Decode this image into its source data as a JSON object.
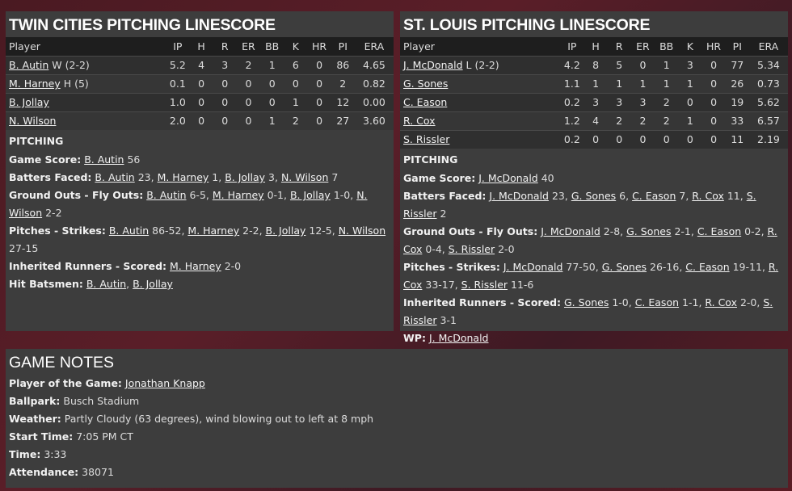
{
  "teams": [
    {
      "title": "TWIN CITIES PITCHING LINESCORE",
      "columns": [
        "Player",
        "IP",
        "H",
        "R",
        "ER",
        "BB",
        "K",
        "HR",
        "PI",
        "ERA"
      ],
      "rows": [
        {
          "name": "B. Autin",
          "note": "W (2-2)",
          "stats": [
            "5.2",
            "4",
            "3",
            "2",
            "1",
            "6",
            "0",
            "86",
            "4.65"
          ]
        },
        {
          "name": "M. Harney",
          "note": "H (5)",
          "stats": [
            "0.1",
            "0",
            "0",
            "0",
            "0",
            "0",
            "0",
            "2",
            "0.82"
          ]
        },
        {
          "name": "B. Jollay",
          "note": "",
          "stats": [
            "1.0",
            "0",
            "0",
            "0",
            "0",
            "1",
            "0",
            "12",
            "0.00"
          ]
        },
        {
          "name": "N. Wilson",
          "note": "",
          "stats": [
            "2.0",
            "0",
            "0",
            "0",
            "1",
            "2",
            "0",
            "27",
            "3.60"
          ]
        }
      ],
      "section": "PITCHING",
      "details": [
        {
          "label": "Game Score:",
          "entries": [
            {
              "name": "B. Autin",
              "value": "56"
            }
          ]
        },
        {
          "label": "Batters Faced:",
          "entries": [
            {
              "name": "B. Autin",
              "value": "23"
            },
            {
              "name": "M. Harney",
              "value": "1"
            },
            {
              "name": "B. Jollay",
              "value": "3"
            },
            {
              "name": "N. Wilson",
              "value": "7"
            }
          ]
        },
        {
          "label": "Ground Outs - Fly Outs:",
          "entries": [
            {
              "name": "B. Autin",
              "value": "6-5"
            },
            {
              "name": "M. Harney",
              "value": "0-1"
            },
            {
              "name": "B. Jollay",
              "value": "1-0"
            },
            {
              "name": "N. Wilson",
              "value": "2-2"
            }
          ]
        },
        {
          "label": "Pitches - Strikes:",
          "entries": [
            {
              "name": "B. Autin",
              "value": "86-52"
            },
            {
              "name": "M. Harney",
              "value": "2-2"
            },
            {
              "name": "B. Jollay",
              "value": "12-5"
            },
            {
              "name": "N. Wilson",
              "value": "27-15"
            }
          ]
        },
        {
          "label": "Inherited Runners - Scored:",
          "entries": [
            {
              "name": "M. Harney",
              "value": "2-0"
            }
          ]
        },
        {
          "label": "Hit Batsmen:",
          "entries": [
            {
              "name": "B. Autin",
              "value": ""
            },
            {
              "name": "B. Jollay",
              "value": ""
            }
          ]
        }
      ]
    },
    {
      "title": "ST. LOUIS PITCHING LINESCORE",
      "columns": [
        "Player",
        "IP",
        "H",
        "R",
        "ER",
        "BB",
        "K",
        "HR",
        "PI",
        "ERA"
      ],
      "rows": [
        {
          "name": "J. McDonald",
          "note": "L (2-2)",
          "stats": [
            "4.2",
            "8",
            "5",
            "0",
            "1",
            "3",
            "0",
            "77",
            "5.34"
          ]
        },
        {
          "name": "G. Sones",
          "note": "",
          "stats": [
            "1.1",
            "1",
            "1",
            "1",
            "1",
            "1",
            "0",
            "26",
            "0.73"
          ]
        },
        {
          "name": "C. Eason",
          "note": "",
          "stats": [
            "0.2",
            "3",
            "3",
            "3",
            "2",
            "0",
            "0",
            "19",
            "5.62"
          ]
        },
        {
          "name": "R. Cox",
          "note": "",
          "stats": [
            "1.2",
            "4",
            "2",
            "2",
            "2",
            "1",
            "0",
            "33",
            "6.57"
          ]
        },
        {
          "name": "S. Rissler",
          "note": "",
          "stats": [
            "0.2",
            "0",
            "0",
            "0",
            "0",
            "0",
            "0",
            "11",
            "2.19"
          ]
        }
      ],
      "section": "PITCHING",
      "details": [
        {
          "label": "Game Score:",
          "entries": [
            {
              "name": "J. McDonald",
              "value": "40"
            }
          ]
        },
        {
          "label": "Batters Faced:",
          "entries": [
            {
              "name": "J. McDonald",
              "value": "23"
            },
            {
              "name": "G. Sones",
              "value": "6"
            },
            {
              "name": "C. Eason",
              "value": "7"
            },
            {
              "name": "R. Cox",
              "value": "11"
            },
            {
              "name": "S. Rissler",
              "value": "2"
            }
          ]
        },
        {
          "label": "Ground Outs - Fly Outs:",
          "entries": [
            {
              "name": "J. McDonald",
              "value": "2-8"
            },
            {
              "name": "G. Sones",
              "value": "2-1"
            },
            {
              "name": "C. Eason",
              "value": "0-2"
            },
            {
              "name": "R. Cox",
              "value": "0-4"
            },
            {
              "name": "S. Rissler",
              "value": "2-0"
            }
          ]
        },
        {
          "label": "Pitches - Strikes:",
          "entries": [
            {
              "name": "J. McDonald",
              "value": "77-50"
            },
            {
              "name": "G. Sones",
              "value": "26-16"
            },
            {
              "name": "C. Eason",
              "value": "19-11"
            },
            {
              "name": "R. Cox",
              "value": "33-17"
            },
            {
              "name": "S. Rissler",
              "value": "11-6"
            }
          ]
        },
        {
          "label": "Inherited Runners - Scored:",
          "entries": [
            {
              "name": "G. Sones",
              "value": "1-0"
            },
            {
              "name": "C. Eason",
              "value": "1-1"
            },
            {
              "name": "R. Cox",
              "value": "2-0"
            },
            {
              "name": "S. Rissler",
              "value": "3-1"
            }
          ]
        },
        {
          "label": "WP:",
          "entries": [
            {
              "name": "J. McDonald",
              "value": ""
            }
          ]
        }
      ]
    }
  ],
  "notes": {
    "title": "GAME NOTES",
    "items": [
      {
        "label": "Player of the Game:",
        "value": "Jonathan Knapp",
        "link": true
      },
      {
        "label": "Ballpark:",
        "value": "Busch Stadium",
        "link": false
      },
      {
        "label": "Weather:",
        "value": "Partly Cloudy (63 degrees), wind blowing out to left at 8 mph",
        "link": false
      },
      {
        "label": "Start Time:",
        "value": "7:05 PM CT",
        "link": false
      },
      {
        "label": "Time:",
        "value": "3:33",
        "link": false
      },
      {
        "label": "Attendance:",
        "value": "38071",
        "link": false
      }
    ]
  }
}
